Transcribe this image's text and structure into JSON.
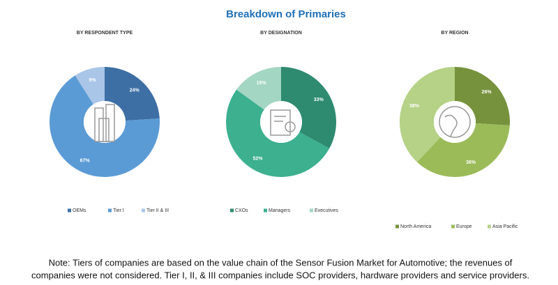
{
  "title": "Breakdown of Primaries",
  "chart_data": [
    {
      "type": "donut",
      "title": "BY RESPONDENT TYPE",
      "categories": [
        "OEMs",
        "Tier I",
        "Tier II & III"
      ],
      "values": [
        24,
        67,
        9
      ],
      "value_labels": [
        "24%",
        "67%",
        "9%"
      ],
      "colors": [
        "#3d6fa5",
        "#5b9bd5",
        "#a9c5e7"
      ]
    },
    {
      "type": "donut",
      "title": "BY DESIGNATION",
      "categories": [
        "CXOs",
        "Managers",
        "Executives"
      ],
      "values": [
        33,
        52,
        15
      ],
      "value_labels": [
        "33%",
        "52%",
        "15%"
      ],
      "colors": [
        "#2e8b70",
        "#3cb08f",
        "#a3d6c3"
      ]
    },
    {
      "type": "donut",
      "title": "BY REGION",
      "categories": [
        "North America",
        "Europe",
        "Asia Pacific"
      ],
      "values": [
        26,
        36,
        38
      ],
      "value_labels": [
        "26%",
        "36%",
        "38%"
      ],
      "colors": [
        "#76923c",
        "#9bbb59",
        "#b5d287"
      ]
    }
  ],
  "note": [
    "Note: Tiers of companies are based on the value chain of the Sensor Fusion Market for Automotive; the revenues of",
    "companies were not considered. Tier I, II, & III companies include SOC providers, hardware providers and service providers."
  ]
}
